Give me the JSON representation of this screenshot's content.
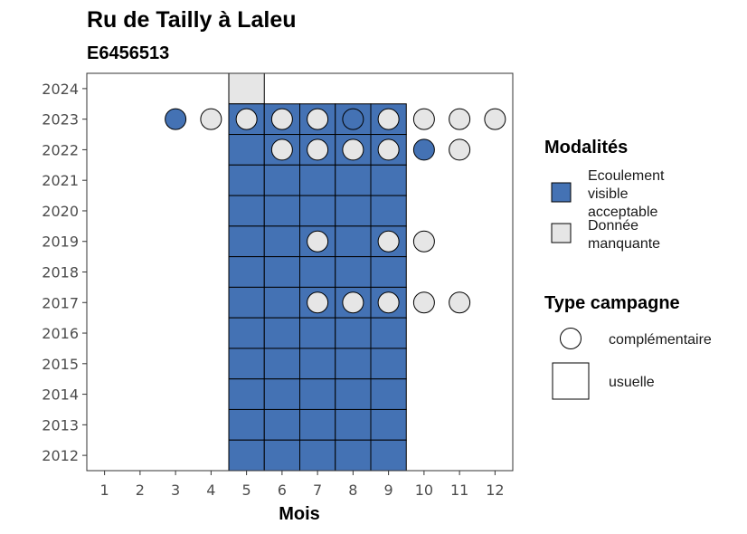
{
  "chart_data": {
    "type": "heatmap",
    "title": "Ru de Tailly à Laleu",
    "subtitle": "E6456513",
    "xlabel": "Mois",
    "ylabel": "",
    "x_ticks": [
      1,
      2,
      3,
      4,
      5,
      6,
      7,
      8,
      9,
      10,
      11,
      12
    ],
    "y_ticks": [
      2012,
      2013,
      2014,
      2015,
      2016,
      2017,
      2018,
      2019,
      2020,
      2021,
      2022,
      2023,
      2024
    ],
    "xlim": [
      0.5,
      12.5
    ],
    "ylim": [
      2011.5,
      2024.5
    ],
    "grid": false,
    "legend_position": "right",
    "modalites": [
      {
        "key": "ecoulement",
        "label_lines": [
          "Ecoulement",
          "visible",
          "acceptable"
        ],
        "color": "#4472b4"
      },
      {
        "key": "manquante",
        "label_lines": [
          "Donnée",
          "manquante"
        ],
        "color": "#e6e6e6"
      }
    ],
    "modalites_title": "Modalités",
    "campagne_title": "Type campagne",
    "campagne_types": [
      {
        "key": "complementaire",
        "label": "complémentaire",
        "shape": "circle"
      },
      {
        "key": "usuelle",
        "label": "usuelle",
        "shape": "square"
      }
    ],
    "usuelle": [
      {
        "year": 2024,
        "months": [
          5
        ],
        "modalite": "manquante"
      },
      {
        "year": 2023,
        "months": [
          5,
          6,
          7,
          8,
          9
        ],
        "modalite": "ecoulement"
      },
      {
        "year": 2022,
        "months": [
          5,
          6,
          7,
          8,
          9
        ],
        "modalite": "ecoulement"
      },
      {
        "year": 2021,
        "months": [
          5,
          6,
          7,
          8,
          9
        ],
        "modalite": "ecoulement"
      },
      {
        "year": 2020,
        "months": [
          5,
          6,
          7,
          8,
          9
        ],
        "modalite": "ecoulement"
      },
      {
        "year": 2019,
        "months": [
          5,
          6,
          7,
          8,
          9
        ],
        "modalite": "ecoulement"
      },
      {
        "year": 2018,
        "months": [
          5,
          6,
          7,
          8,
          9
        ],
        "modalite": "ecoulement"
      },
      {
        "year": 2017,
        "months": [
          5,
          6,
          7,
          8,
          9
        ],
        "modalite": "ecoulement"
      },
      {
        "year": 2016,
        "months": [
          5,
          6,
          7,
          8,
          9
        ],
        "modalite": "ecoulement"
      },
      {
        "year": 2015,
        "months": [
          5,
          6,
          7,
          8,
          9
        ],
        "modalite": "ecoulement"
      },
      {
        "year": 2014,
        "months": [
          5,
          6,
          7,
          8,
          9
        ],
        "modalite": "ecoulement"
      },
      {
        "year": 2013,
        "months": [
          5,
          6,
          7,
          8,
          9
        ],
        "modalite": "ecoulement"
      },
      {
        "year": 2012,
        "months": [
          5,
          6,
          7,
          8,
          9
        ],
        "modalite": "ecoulement"
      }
    ],
    "complementaire": [
      {
        "year": 2023,
        "month": 3,
        "modalite": "ecoulement"
      },
      {
        "year": 2023,
        "month": 4,
        "modalite": "manquante"
      },
      {
        "year": 2023,
        "month": 5,
        "modalite": "manquante"
      },
      {
        "year": 2023,
        "month": 6,
        "modalite": "manquante"
      },
      {
        "year": 2023,
        "month": 7,
        "modalite": "manquante"
      },
      {
        "year": 2023,
        "month": 8,
        "modalite": "ecoulement"
      },
      {
        "year": 2023,
        "month": 9,
        "modalite": "manquante"
      },
      {
        "year": 2023,
        "month": 10,
        "modalite": "manquante"
      },
      {
        "year": 2023,
        "month": 11,
        "modalite": "manquante"
      },
      {
        "year": 2023,
        "month": 12,
        "modalite": "manquante"
      },
      {
        "year": 2022,
        "month": 6,
        "modalite": "manquante"
      },
      {
        "year": 2022,
        "month": 7,
        "modalite": "manquante"
      },
      {
        "year": 2022,
        "month": 8,
        "modalite": "manquante"
      },
      {
        "year": 2022,
        "month": 9,
        "modalite": "manquante"
      },
      {
        "year": 2022,
        "month": 10,
        "modalite": "ecoulement"
      },
      {
        "year": 2022,
        "month": 11,
        "modalite": "manquante"
      },
      {
        "year": 2019,
        "month": 7,
        "modalite": "manquante"
      },
      {
        "year": 2019,
        "month": 9,
        "modalite": "manquante"
      },
      {
        "year": 2019,
        "month": 10,
        "modalite": "manquante"
      },
      {
        "year": 2017,
        "month": 7,
        "modalite": "manquante"
      },
      {
        "year": 2017,
        "month": 8,
        "modalite": "manquante"
      },
      {
        "year": 2017,
        "month": 9,
        "modalite": "manquante"
      },
      {
        "year": 2017,
        "month": 10,
        "modalite": "manquante"
      },
      {
        "year": 2017,
        "month": 11,
        "modalite": "manquante"
      }
    ]
  }
}
